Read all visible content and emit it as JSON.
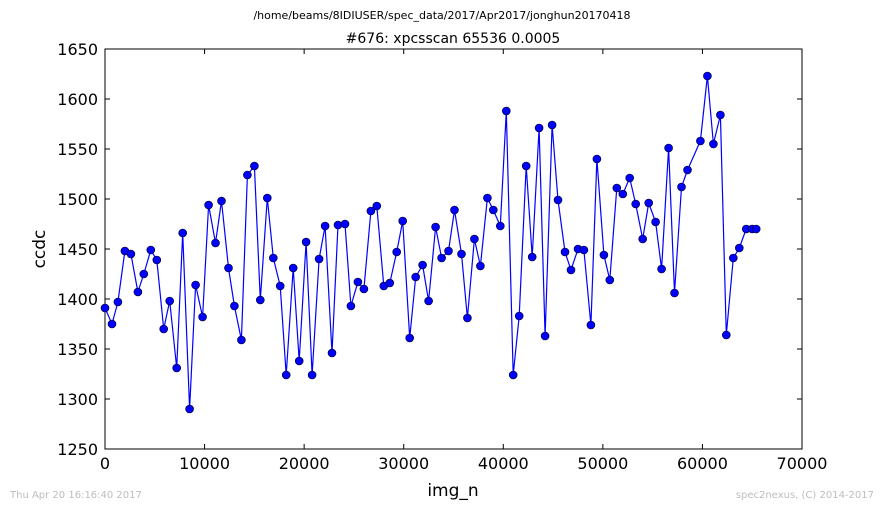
{
  "chart_data": {
    "type": "line",
    "path_title": "/home/beams/8IDIUSER/spec_data/2017/Apr2017/jonghun20170418",
    "title": "#676: xpcsscan 65536 0.0005",
    "xlabel": "img_n",
    "ylabel": "ccdc",
    "xlim": [
      0,
      70000
    ],
    "ylim": [
      1250,
      1650
    ],
    "xticks": [
      "0",
      "10000",
      "20000",
      "30000",
      "40000",
      "50000",
      "60000",
      "70000"
    ],
    "yticks": [
      "1250",
      "1300",
      "1350",
      "1400",
      "1450",
      "1500",
      "1550",
      "1600",
      "1650"
    ],
    "grid": false,
    "legend": "none",
    "footer_left": "Thu Apr 20 16:16:40 2017",
    "footer_right": "spec2nexus, (C) 2014-2017",
    "series": [
      {
        "color": "#0000ff",
        "marker_color": "#0000ff",
        "x": [
          0,
          700,
          1300,
          2000,
          2600,
          3300,
          3900,
          4600,
          5200,
          5900,
          6500,
          7200,
          7800,
          8500,
          9100,
          9800,
          10400,
          11100,
          11700,
          12400,
          13000,
          13700,
          14300,
          15000,
          15600,
          16300,
          16900,
          17600,
          18200,
          18900,
          19500,
          20200,
          20800,
          21500,
          22100,
          22800,
          23400,
          24100,
          24700,
          25400,
          26000,
          26700,
          27300,
          28000,
          28600,
          29300,
          29900,
          30600,
          31200,
          31900,
          32500,
          33200,
          33800,
          34500,
          35100,
          35800,
          36400,
          37100,
          37700,
          38400,
          39000,
          39700,
          40300,
          41000,
          41600,
          42300,
          42900,
          43600,
          44200,
          44900,
          45500,
          46200,
          46800,
          47500,
          48100,
          48800,
          49400,
          50100,
          50700,
          51400,
          52000,
          52700,
          53300,
          54000,
          54600,
          55300,
          55900,
          56600,
          57200,
          57900,
          58500,
          59800,
          60500,
          61100,
          61800,
          62400,
          63100,
          63700,
          64400,
          65000,
          65400
        ],
        "y": [
          1391,
          1375,
          1397,
          1448,
          1445,
          1407,
          1425,
          1449,
          1439,
          1370,
          1398,
          1331,
          1466,
          1290,
          1414,
          1382,
          1494,
          1456,
          1498,
          1431,
          1393,
          1359,
          1524,
          1533,
          1399,
          1501,
          1441,
          1413,
          1324,
          1431,
          1338,
          1457,
          1324,
          1440,
          1473,
          1346,
          1474,
          1475,
          1393,
          1417,
          1410,
          1488,
          1493,
          1413,
          1416,
          1447,
          1478,
          1361,
          1422,
          1434,
          1398,
          1472,
          1441,
          1448,
          1489,
          1445,
          1381,
          1460,
          1433,
          1501,
          1489,
          1473,
          1588,
          1324,
          1383,
          1533,
          1442,
          1571,
          1363,
          1574,
          1499,
          1447,
          1429,
          1450,
          1449,
          1374,
          1540,
          1444,
          1419,
          1511,
          1505,
          1521,
          1495,
          1460,
          1496,
          1477,
          1430,
          1551,
          1406,
          1512,
          1529,
          1558,
          1623,
          1555,
          1584,
          1364,
          1441,
          1451,
          1470,
          1470,
          1470
        ]
      }
    ]
  }
}
